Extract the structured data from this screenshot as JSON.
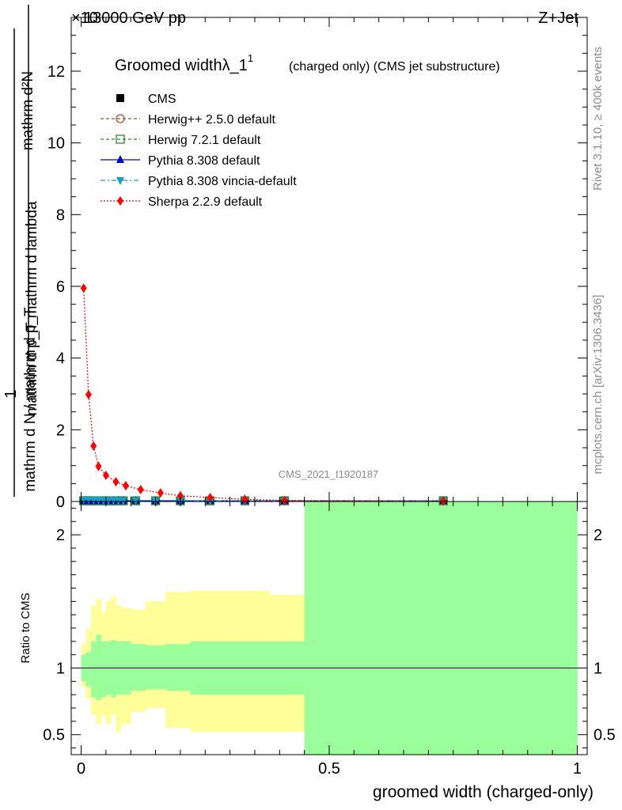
{
  "header": {
    "left": "13000 GeV pp",
    "right": "Z+Jet",
    "multiplier": "×10"
  },
  "side_text": {
    "rivet": "Rivet 3.1.10, ≥ 400k events",
    "mcplots": "mcplots.cern.ch [arXiv:1306.3436]"
  },
  "watermark": "CMS_2021_I1920187",
  "chart_data": [
    {
      "type": "line",
      "panel": "main",
      "title": "Groomed widthλ_1",
      "title_sup": "1",
      "subtitle": "(charged only) (CMS jet substructure)",
      "ylabel_top": "mathrm d²N",
      "ylabel_bottom": "mathrm d N / mathrm d p_T mathrm d p_T mathrm d lambda",
      "ylabel_lines": [
        "mathrm d²N",
        "mathrm d p_T mathrm d lambda",
        "1",
        "mathrm d N / mathrm d p_T"
      ],
      "xlim": [
        -0.02,
        1.02
      ],
      "ylim": [
        0,
        13.5
      ],
      "yticks": [
        0,
        2,
        4,
        6,
        8,
        10,
        12
      ],
      "ytick_labels": [
        "0",
        "2",
        "4",
        "6",
        "8",
        "10",
        "12"
      ],
      "grid": false,
      "legend_placement": "top-left",
      "series": [
        {
          "name": "CMS",
          "color": "#000000",
          "style": "solid",
          "marker": "square-filled",
          "x": [
            0.005,
            0.015,
            0.025,
            0.035,
            0.045,
            0.055,
            0.065,
            0.075,
            0.085,
            0.11,
            0.15,
            0.2,
            0.26,
            0.33,
            0.41,
            0.73
          ],
          "y": [
            0.02,
            0.02,
            0.02,
            0.02,
            0.02,
            0.02,
            0.02,
            0.02,
            0.02,
            0.02,
            0.02,
            0.02,
            0.02,
            0.02,
            0.02,
            0.02
          ]
        },
        {
          "name": "Herwig++ 2.5.0 default",
          "color": "#a0522d",
          "style": "dashed",
          "marker": "circle-open",
          "x": [
            0.005,
            0.015,
            0.025,
            0.035,
            0.045,
            0.055,
            0.065,
            0.075,
            0.085,
            0.11,
            0.15,
            0.2,
            0.26,
            0.33,
            0.41,
            0.73
          ],
          "y": [
            0.02,
            0.02,
            0.02,
            0.02,
            0.02,
            0.02,
            0.02,
            0.02,
            0.02,
            0.02,
            0.02,
            0.02,
            0.02,
            0.02,
            0.02,
            0.02
          ]
        },
        {
          "name": "Herwig 7.2.1 default",
          "color": "#2e8b2e",
          "style": "dashed",
          "marker": "square-open",
          "x": [
            0.005,
            0.015,
            0.025,
            0.035,
            0.045,
            0.055,
            0.065,
            0.075,
            0.085,
            0.11,
            0.15,
            0.2,
            0.26,
            0.33,
            0.41,
            0.73
          ],
          "y": [
            0.02,
            0.02,
            0.02,
            0.02,
            0.02,
            0.02,
            0.02,
            0.02,
            0.02,
            0.02,
            0.02,
            0.02,
            0.02,
            0.02,
            0.02,
            0.02
          ]
        },
        {
          "name": "Pythia 8.308 default",
          "color": "#0000cc",
          "style": "solid",
          "marker": "triangle-up",
          "x": [
            0.005,
            0.015,
            0.025,
            0.035,
            0.045,
            0.055,
            0.065,
            0.075,
            0.085,
            0.11,
            0.15,
            0.2,
            0.26,
            0.33,
            0.41,
            0.73
          ],
          "y": [
            0.02,
            0.02,
            0.02,
            0.02,
            0.02,
            0.02,
            0.02,
            0.02,
            0.02,
            0.02,
            0.02,
            0.02,
            0.02,
            0.02,
            0.02,
            0.02
          ]
        },
        {
          "name": "Pythia 8.308 vincia-default",
          "color": "#1a9ec0",
          "style": "dashdot",
          "marker": "triangle-down",
          "x": [
            0.005,
            0.015,
            0.025,
            0.035,
            0.045,
            0.055,
            0.065,
            0.075,
            0.085,
            0.11,
            0.15,
            0.2,
            0.26,
            0.33,
            0.41,
            0.73
          ],
          "y": [
            0.06,
            0.06,
            0.05,
            0.05,
            0.04,
            0.04,
            0.04,
            0.03,
            0.03,
            0.03,
            0.03,
            0.03,
            0.02,
            0.02,
            0.02,
            0.02
          ]
        },
        {
          "name": "Sherpa 2.2.9 default",
          "color": "#ff0000",
          "style": "dotted",
          "marker": "diamond",
          "x": [
            0.005,
            0.015,
            0.025,
            0.035,
            0.05,
            0.07,
            0.09,
            0.12,
            0.16,
            0.2,
            0.26,
            0.33,
            0.41,
            0.73
          ],
          "y": [
            5.95,
            2.98,
            1.55,
            0.98,
            0.73,
            0.55,
            0.44,
            0.33,
            0.24,
            0.16,
            0.11,
            0.06,
            0.03,
            0.01
          ]
        }
      ]
    },
    {
      "type": "area",
      "panel": "ratio",
      "ylabel": "Ratio to CMS",
      "xlabel": "groomed width (charged-only)",
      "xlim": [
        -0.02,
        1.02
      ],
      "xticks": [
        0,
        0.5,
        1
      ],
      "xtick_labels": [
        "0",
        "0.5",
        "1"
      ],
      "ylim": [
        0.35,
        2.25
      ],
      "yticks": [
        0.5,
        1,
        2
      ],
      "ytick_labels": [
        "0.5",
        "1",
        "2"
      ],
      "reference_line": 1,
      "bin_edges": [
        0,
        0.01,
        0.02,
        0.03,
        0.04,
        0.05,
        0.06,
        0.07,
        0.08,
        0.1,
        0.13,
        0.17,
        0.22,
        0.3,
        0.38,
        0.45,
        1.0
      ],
      "stat_band": {
        "color": "#9aff9a",
        "lo": [
          0.9,
          0.86,
          0.78,
          0.76,
          0.78,
          0.8,
          0.78,
          0.8,
          0.8,
          0.83,
          0.84,
          0.83,
          0.8,
          0.8,
          0.8,
          0.0
        ],
        "hi": [
          1.1,
          1.12,
          1.2,
          1.25,
          1.2,
          1.2,
          1.21,
          1.2,
          1.2,
          1.18,
          1.17,
          1.18,
          1.2,
          1.2,
          1.2,
          2.25
        ]
      },
      "syst_band": {
        "color": "#ffff99",
        "lo": [
          0.86,
          0.77,
          0.65,
          0.58,
          0.64,
          0.58,
          0.65,
          0.52,
          0.58,
          0.67,
          0.7,
          0.55,
          0.52,
          0.52,
          0.52,
          0.52
        ],
        "hi": [
          1.18,
          1.3,
          1.47,
          1.52,
          1.42,
          1.5,
          1.54,
          1.47,
          1.45,
          1.44,
          1.5,
          1.57,
          1.58,
          1.58,
          1.55,
          1.55
        ]
      }
    }
  ]
}
